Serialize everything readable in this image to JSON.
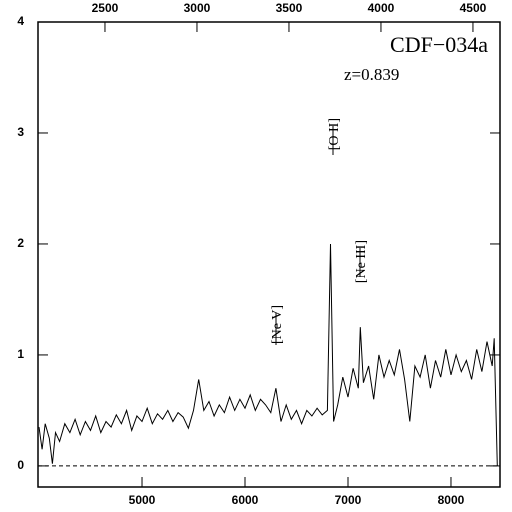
{
  "chart_data": {
    "type": "line",
    "annotations": [
      "CDF−034a",
      "z=0.839",
      "[O II]",
      "[Ne III]",
      "[Ne V]"
    ],
    "x": [
      4000,
      4030,
      4060,
      4100,
      4130,
      4160,
      4200,
      4250,
      4300,
      4350,
      4400,
      4450,
      4500,
      4550,
      4600,
      4650,
      4700,
      4750,
      4800,
      4850,
      4900,
      4950,
      5000,
      5050,
      5100,
      5150,
      5200,
      5250,
      5300,
      5350,
      5400,
      5450,
      5500,
      5550,
      5600,
      5650,
      5700,
      5750,
      5800,
      5850,
      5900,
      5950,
      6000,
      6050,
      6100,
      6150,
      6200,
      6250,
      6300,
      6350,
      6400,
      6450,
      6500,
      6550,
      6600,
      6650,
      6700,
      6750,
      6800,
      6830,
      6860,
      6900,
      6950,
      7000,
      7050,
      7100,
      7120,
      7150,
      7200,
      7250,
      7300,
      7350,
      7400,
      7450,
      7500,
      7550,
      7600,
      7650,
      7700,
      7750,
      7800,
      7850,
      7900,
      7950,
      8000,
      8050,
      8100,
      8150,
      8200,
      8250,
      8300,
      8350,
      8400,
      8420,
      8450
    ],
    "series": [
      {
        "color": "#000000",
        "values": [
          0.35,
          0.15,
          0.38,
          0.25,
          0.02,
          0.3,
          0.22,
          0.38,
          0.3,
          0.42,
          0.28,
          0.4,
          0.32,
          0.45,
          0.3,
          0.4,
          0.35,
          0.46,
          0.38,
          0.5,
          0.32,
          0.45,
          0.4,
          0.52,
          0.38,
          0.47,
          0.42,
          0.5,
          0.4,
          0.48,
          0.44,
          0.34,
          0.5,
          0.78,
          0.5,
          0.58,
          0.45,
          0.55,
          0.48,
          0.62,
          0.5,
          0.6,
          0.52,
          0.64,
          0.5,
          0.6,
          0.55,
          0.48,
          0.7,
          0.4,
          0.55,
          0.42,
          0.5,
          0.38,
          0.5,
          0.45,
          0.52,
          0.46,
          0.5,
          2.0,
          0.4,
          0.55,
          0.8,
          0.62,
          0.88,
          0.7,
          1.25,
          0.75,
          0.9,
          0.6,
          1.0,
          0.8,
          0.95,
          0.82,
          1.05,
          0.78,
          0.4,
          0.9,
          0.8,
          1.0,
          0.7,
          0.95,
          0.8,
          1.05,
          0.82,
          1.0,
          0.85,
          0.95,
          0.78,
          1.05,
          0.85,
          1.12,
          0.9,
          1.15,
          0.0
        ]
      }
    ],
    "xlim": [
      3990,
      8476
    ],
    "xticks": [
      5000,
      6000,
      7000,
      8000
    ],
    "x2lim": [
      2136,
      4647
    ],
    "x2ticks": [
      2500,
      3000,
      3500,
      4000,
      4500
    ],
    "ylim": [
      -0.19,
      4
    ],
    "yticks": [
      0,
      1,
      2,
      3,
      4
    ],
    "hline": 0
  }
}
